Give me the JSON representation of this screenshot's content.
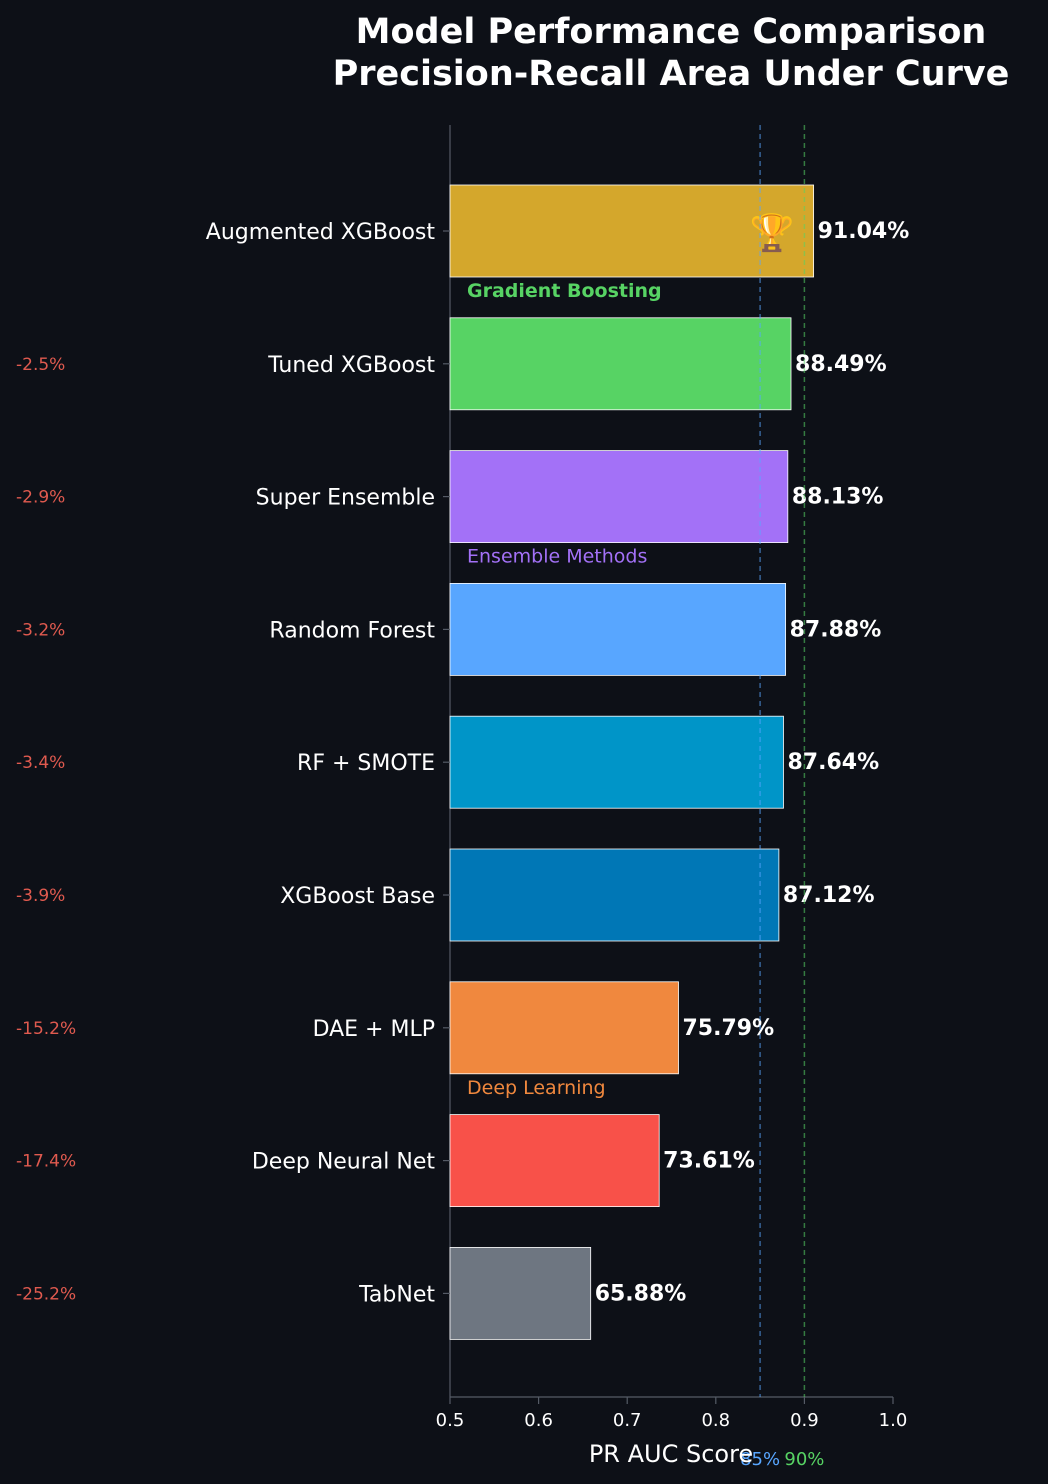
{
  "chart_data": {
    "type": "bar",
    "orientation": "horizontal",
    "title_lines": [
      "Model Performance Comparison",
      "Precision-Recall Area Under Curve"
    ],
    "xlabel": "PR AUC Score",
    "xlim": [
      0.5,
      1.0
    ],
    "xticks": [
      0.5,
      0.6,
      0.7,
      0.8,
      0.9,
      1.0
    ],
    "xtick_labels": [
      "0.5",
      "0.6",
      "0.7",
      "0.8",
      "0.9",
      "1.0"
    ],
    "categories": [
      "Augmented XGBoost",
      "Tuned XGBoost",
      "Super Ensemble",
      "Random Forest",
      "RF + SMOTE",
      "XGBoost Base",
      "DAE + MLP",
      "Deep Neural Net",
      "TabNet"
    ],
    "values": [
      0.9104,
      0.8849,
      0.8813,
      0.8788,
      0.8764,
      0.8712,
      0.7579,
      0.7361,
      0.6588
    ],
    "value_labels": [
      "91.04%",
      "88.49%",
      "88.13%",
      "87.88%",
      "87.64%",
      "87.12%",
      "75.79%",
      "73.61%",
      "65.88%"
    ],
    "bar_colors": [
      "#d4a72c",
      "#57d364",
      "#a371f7",
      "#58a6ff",
      "#0095c8",
      "#0077b6",
      "#f0883e",
      "#f85149",
      "#6e7681"
    ],
    "diff_labels": [
      "",
      "-2.5%",
      "-2.9%",
      "-3.2%",
      "-3.4%",
      "-3.9%",
      "-15.2%",
      "-17.4%",
      "-25.2%"
    ],
    "diff_color": "#e05a4f",
    "best_marker_icon": "trophy-icon",
    "best_marker_glyph": "🏆",
    "group_annotations": [
      {
        "label": "Gradient Boosting",
        "after_index": 0,
        "color": "#57d364",
        "bold": true
      },
      {
        "label": "Ensemble Methods",
        "after_index": 2,
        "color": "#a371f7",
        "bold": false
      },
      {
        "label": "Deep Learning",
        "after_index": 6,
        "color": "#f0883e",
        "bold": false
      }
    ],
    "reference_lines": [
      {
        "value": 0.85,
        "label": "85%",
        "color": "#58a6ff"
      },
      {
        "value": 0.9,
        "label": "90%",
        "color": "#57d364"
      }
    ],
    "grid": false,
    "colors": {
      "background": "#0d1017",
      "axis": "#555b66",
      "text": "#ffffff"
    }
  }
}
